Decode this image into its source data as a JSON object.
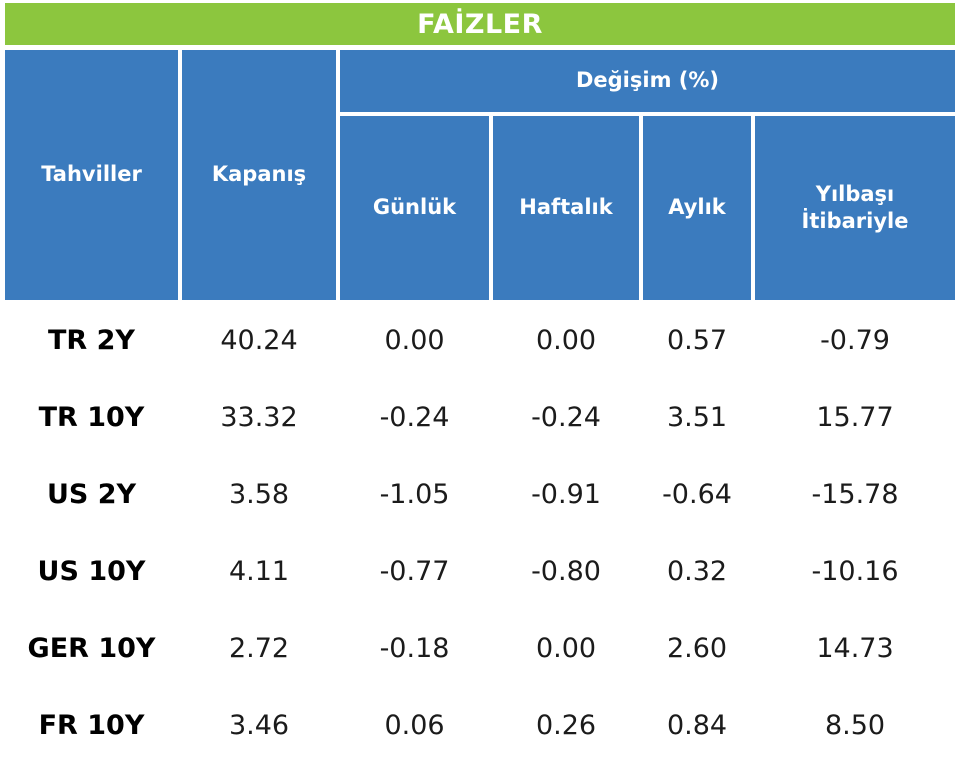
{
  "title_bar": {
    "title": "FAİZLER"
  },
  "colors": {
    "green_header": "#8CC63E",
    "blue_header": "#3B7BBE",
    "body_text": "#1b1b1b"
  },
  "header": {
    "col_tahviller": "Tahviller",
    "col_kapanis": "Kapanış",
    "group_degisim": "Değişim (%)",
    "col_gunluk": "Günlük",
    "col_haftalik": "Haftalık",
    "col_aylik": "Aylık",
    "col_yilbasi": "Yılbaşı İtibariyle"
  },
  "table": {
    "rows": [
      {
        "label": "TR 2Y",
        "values": [
          "40.24",
          "0.00",
          "0.00",
          "0.57",
          "-0.79"
        ]
      },
      {
        "label": "TR 10Y",
        "values": [
          "33.32",
          "-0.24",
          "-0.24",
          "3.51",
          "15.77"
        ]
      },
      {
        "label": "US 2Y",
        "values": [
          "3.58",
          "-1.05",
          "-0.91",
          "-0.64",
          "-15.78"
        ]
      },
      {
        "label": "US 10Y",
        "values": [
          "4.11",
          "-0.77",
          "-0.80",
          "0.32",
          "-10.16"
        ]
      },
      {
        "label": "GER 10Y",
        "values": [
          "2.72",
          "-0.18",
          "0.00",
          "2.60",
          "14.73"
        ]
      },
      {
        "label": "FR 10Y",
        "values": [
          "3.46",
          "0.06",
          "0.26",
          "0.84",
          "8.50"
        ]
      }
    ]
  },
  "chart_data": {
    "type": "table",
    "title": "FAİZLER",
    "column_group": "Değişim (%)",
    "columns": [
      "Tahviller",
      "Kapanış",
      "Günlük",
      "Haftalık",
      "Aylık",
      "Yılbaşı İtibariyle"
    ],
    "rows": [
      [
        "TR 2Y",
        40.24,
        0.0,
        0.0,
        0.57,
        -0.79
      ],
      [
        "TR 10Y",
        33.32,
        -0.24,
        -0.24,
        3.51,
        15.77
      ],
      [
        "US 2Y",
        3.58,
        -1.05,
        -0.91,
        -0.64,
        -15.78
      ],
      [
        "US 10Y",
        4.11,
        -0.77,
        -0.8,
        0.32,
        -10.16
      ],
      [
        "GER 10Y",
        2.72,
        -0.18,
        0.0,
        2.6,
        14.73
      ],
      [
        "FR 10Y",
        3.46,
        0.06,
        0.26,
        0.84,
        8.5
      ]
    ]
  }
}
